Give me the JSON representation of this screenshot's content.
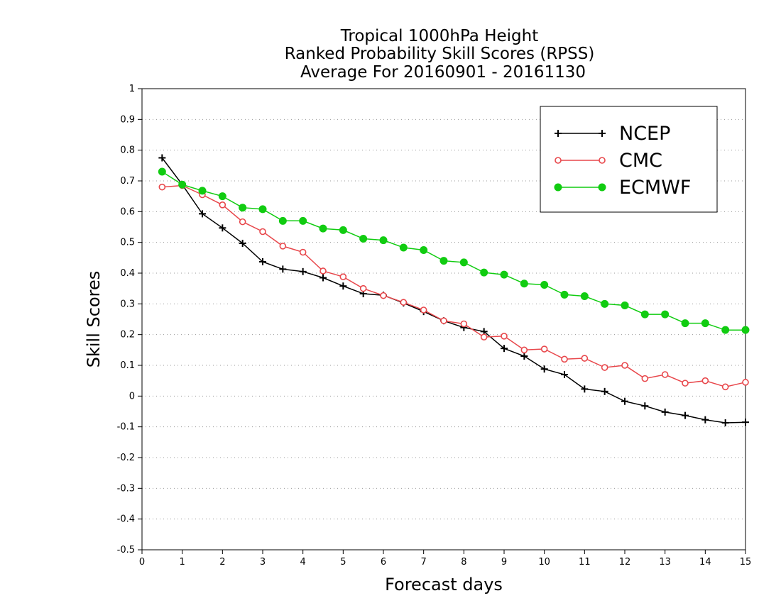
{
  "chart_data": {
    "type": "line",
    "title_lines": [
      "Tropical 1000hPa Height",
      "Ranked Probability Skill Scores (RPSS)",
      "Average For 20160901 - 20161130"
    ],
    "xlabel": "Forecast days",
    "ylabel": "Skill Scores",
    "xlim": [
      0,
      15
    ],
    "ylim": [
      -0.5,
      1
    ],
    "xticks": [
      "0",
      "1",
      "2",
      "3",
      "4",
      "5",
      "6",
      "7",
      "8",
      "9",
      "10",
      "11",
      "12",
      "13",
      "14",
      "15"
    ],
    "yticks": [
      "-0.5",
      "-0.4",
      "-0.3",
      "-0.2",
      "-0.1",
      "0",
      "0.1",
      "0.2",
      "0.3",
      "0.4",
      "0.5",
      "0.6",
      "0.7",
      "0.8",
      "0.9",
      "1"
    ],
    "grid": "horizontal dotted",
    "legend_position": "top-right",
    "x": [
      0.5,
      1,
      1.5,
      2,
      2.5,
      3,
      3.5,
      4,
      4.5,
      5,
      5.5,
      6,
      6.5,
      7,
      7.5,
      8,
      8.5,
      9,
      9.5,
      10,
      10.5,
      11,
      11.5,
      12,
      12.5,
      13,
      13.5,
      14,
      14.5,
      15
    ],
    "series": [
      {
        "name": "NCEP",
        "color": "#000000",
        "marker": "plus",
        "values": [
          0.775,
          0.688,
          0.593,
          0.547,
          0.497,
          0.437,
          0.413,
          0.405,
          0.385,
          0.358,
          0.333,
          0.328,
          0.303,
          0.275,
          0.245,
          0.223,
          0.21,
          0.155,
          0.13,
          0.088,
          0.07,
          0.023,
          0.015,
          -0.017,
          -0.032,
          -0.052,
          -0.063,
          -0.077,
          -0.087,
          -0.085
        ]
      },
      {
        "name": "CMC",
        "color": "#e8474b",
        "marker": "open-circle",
        "values": [
          0.68,
          0.685,
          0.655,
          0.622,
          0.567,
          0.535,
          0.488,
          0.468,
          0.407,
          0.388,
          0.35,
          0.327,
          0.305,
          0.28,
          0.245,
          0.235,
          0.192,
          0.195,
          0.15,
          0.153,
          0.12,
          0.123,
          0.093,
          0.1,
          0.057,
          0.07,
          0.042,
          0.05,
          0.03,
          0.045
        ]
      },
      {
        "name": "ECMWF",
        "color": "#11cc11",
        "marker": "filled-circle",
        "values": [
          0.73,
          0.688,
          0.668,
          0.65,
          0.613,
          0.608,
          0.57,
          0.57,
          0.545,
          0.54,
          0.512,
          0.507,
          0.483,
          0.475,
          0.44,
          0.435,
          0.402,
          0.395,
          0.366,
          0.362,
          0.33,
          0.325,
          0.3,
          0.295,
          0.266,
          0.266,
          0.237,
          0.237,
          0.215,
          0.215
        ]
      }
    ]
  }
}
